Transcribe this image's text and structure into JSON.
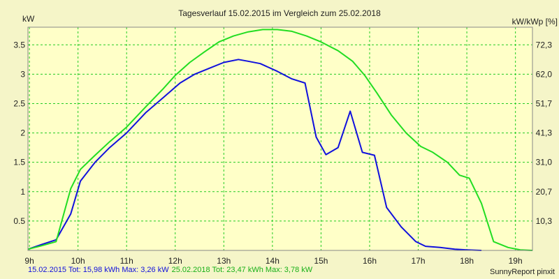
{
  "chart_data": {
    "type": "line",
    "title": "Tagesverlauf 15.02.2015 im Vergleich zum 25.02.2018",
    "ylabel_left": "kW",
    "ylabel_right": "kW/kWp [%]",
    "xlim": [
      8.97,
      19.35
    ],
    "ylim": [
      0,
      3.8
    ],
    "x_ticks": [
      {
        "value": 9,
        "label": "9h"
      },
      {
        "value": 10,
        "label": "10h"
      },
      {
        "value": 11,
        "label": "11h"
      },
      {
        "value": 12,
        "label": "12h"
      },
      {
        "value": 13,
        "label": "13h"
      },
      {
        "value": 14,
        "label": "14h"
      },
      {
        "value": 15,
        "label": "15h"
      },
      {
        "value": 16,
        "label": "16h"
      },
      {
        "value": 17,
        "label": "17h"
      },
      {
        "value": 18,
        "label": "18h"
      },
      {
        "value": 19,
        "label": "19h"
      }
    ],
    "y_ticks_left": [
      {
        "value": 0.5,
        "label": "0.5"
      },
      {
        "value": 1,
        "label": "1"
      },
      {
        "value": 1.5,
        "label": "1.5"
      },
      {
        "value": 2,
        "label": "2"
      },
      {
        "value": 2.5,
        "label": "2.5"
      },
      {
        "value": 3,
        "label": "3"
      },
      {
        "value": 3.5,
        "label": "3.5"
      }
    ],
    "y_ticks_right": [
      {
        "value": 0.5,
        "label": "10,3"
      },
      {
        "value": 1,
        "label": "20,7"
      },
      {
        "value": 1.5,
        "label": "31,0"
      },
      {
        "value": 2,
        "label": "41,3"
      },
      {
        "value": 2.5,
        "label": "51,7"
      },
      {
        "value": 3,
        "label": "62,0"
      },
      {
        "value": 3.5,
        "label": "72,3"
      }
    ],
    "grid": true,
    "series": [
      {
        "name": "15.02.2015",
        "color": "#1010dd",
        "x": [
          8.97,
          9.25,
          9.55,
          9.85,
          10.05,
          10.35,
          10.65,
          11.0,
          11.4,
          11.75,
          12.1,
          12.4,
          12.7,
          13.0,
          13.3,
          13.5,
          13.75,
          14.1,
          14.4,
          14.67,
          14.9,
          15.1,
          15.35,
          15.6,
          15.85,
          16.1,
          16.35,
          16.65,
          16.95,
          17.15,
          17.45,
          17.75,
          18.0,
          18.3
        ],
        "y": [
          0.02,
          0.1,
          0.18,
          0.62,
          1.18,
          1.5,
          1.75,
          2.0,
          2.35,
          2.6,
          2.85,
          3.0,
          3.1,
          3.2,
          3.25,
          3.22,
          3.18,
          3.05,
          2.92,
          2.85,
          1.93,
          1.63,
          1.75,
          2.37,
          1.67,
          1.62,
          0.73,
          0.4,
          0.15,
          0.07,
          0.05,
          0.02,
          0.01,
          0.0
        ]
      },
      {
        "name": "25.02.2018",
        "color": "#22dd22",
        "x": [
          8.97,
          9.25,
          9.55,
          9.85,
          10.05,
          10.35,
          10.65,
          11.0,
          11.4,
          11.75,
          12.0,
          12.3,
          12.6,
          12.9,
          13.2,
          13.5,
          13.8,
          14.1,
          14.4,
          14.7,
          15.0,
          15.35,
          15.65,
          15.9,
          16.15,
          16.45,
          16.75,
          17.05,
          17.3,
          17.6,
          17.85,
          18.05,
          18.3,
          18.55,
          18.85,
          19.1,
          19.35
        ],
        "y": [
          0.02,
          0.08,
          0.15,
          1.05,
          1.38,
          1.62,
          1.85,
          2.1,
          2.45,
          2.75,
          2.98,
          3.2,
          3.38,
          3.55,
          3.65,
          3.72,
          3.76,
          3.76,
          3.73,
          3.65,
          3.55,
          3.4,
          3.22,
          2.98,
          2.68,
          2.3,
          2.0,
          1.77,
          1.67,
          1.5,
          1.28,
          1.23,
          0.8,
          0.15,
          0.05,
          0.01,
          0.0
        ]
      }
    ]
  },
  "footer": {
    "series1": "15.02.2015 Tot: 15,98 kWh Max: 3,26 kW",
    "series2": "25.02.2018 Tot: 23,47 kWh Max: 3,78 kW",
    "credit": "SunnyReport pinxit"
  }
}
